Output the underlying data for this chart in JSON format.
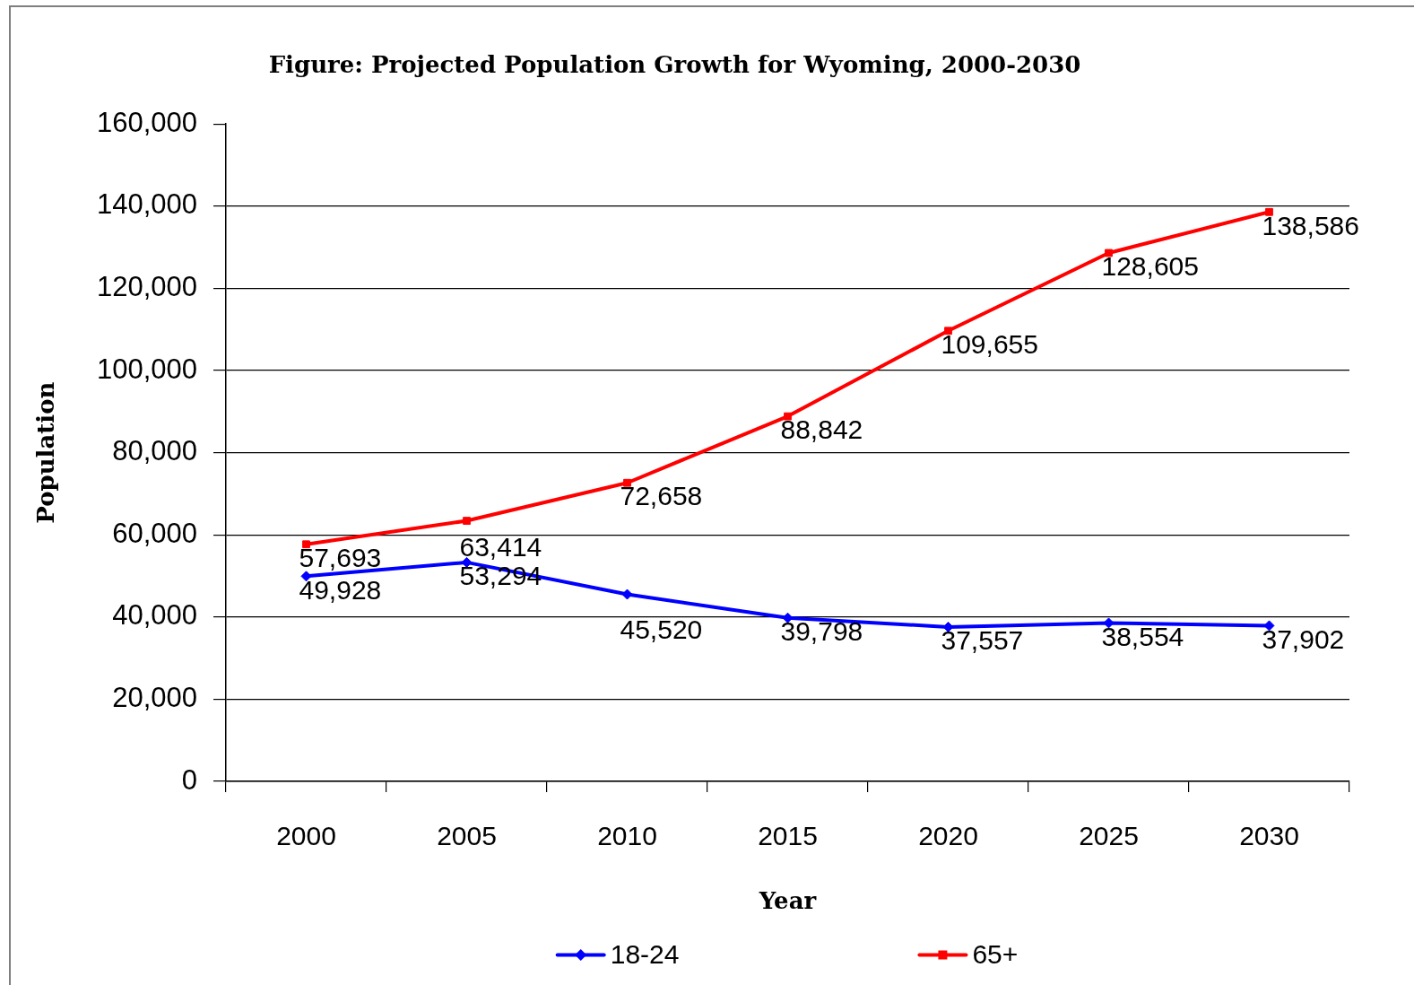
{
  "chart_data": {
    "type": "line",
    "title": "Figure: Projected Population Growth for Wyoming, 2000-2030",
    "xlabel": "Year",
    "ylabel": "Population",
    "categories": [
      "2000",
      "2005",
      "2010",
      "2015",
      "2020",
      "2025",
      "2030"
    ],
    "series": [
      {
        "name": "18-24",
        "color": "#0000ff",
        "marker": "diamond",
        "values": [
          49928,
          53294,
          45520,
          39798,
          37557,
          38554,
          37902
        ],
        "value_labels": [
          "49,928",
          "53,294",
          "45,520",
          "39,798",
          "37,557",
          "38,554",
          "37,902"
        ]
      },
      {
        "name": "65+",
        "color": "#ff0000",
        "marker": "square",
        "values": [
          57693,
          63414,
          72658,
          88842,
          109655,
          128605,
          138586
        ],
        "value_labels": [
          "57,693",
          "63,414",
          "72,658",
          "88,842",
          "109,655",
          "128,605",
          "138,586"
        ]
      }
    ],
    "ylim": [
      0,
      160000
    ],
    "yticks": [
      0,
      {
        "value": 20000,
        "label": "20,000"
      },
      {
        "value": 40000,
        "label": "40,000"
      },
      {
        "value": 60000,
        "label": "60,000"
      },
      {
        "value": 80000,
        "label": "80,000"
      },
      {
        "value": 100000,
        "label": "100,000"
      },
      {
        "value": 120000,
        "label": "120,000"
      },
      {
        "value": 140000,
        "label": "140,000"
      },
      {
        "value": 160000,
        "label": "160,000"
      }
    ],
    "grid": "y",
    "legend": "bottom",
    "line_style": "solid"
  }
}
